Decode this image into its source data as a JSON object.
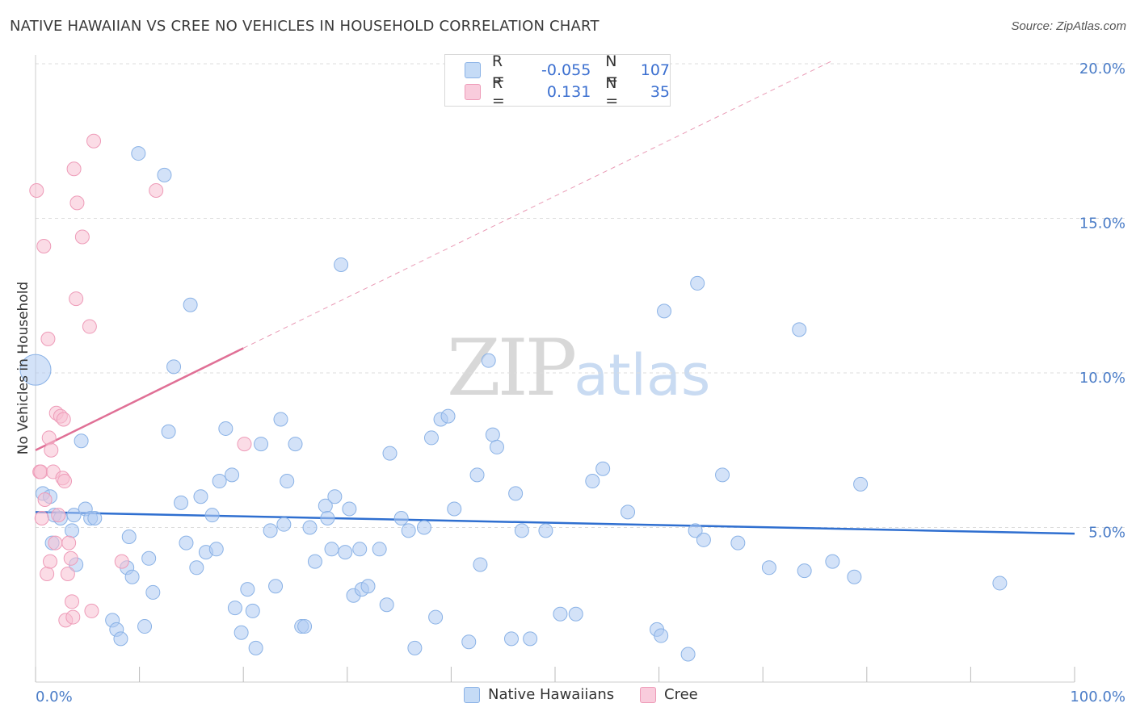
{
  "title": "NATIVE HAWAIIAN VS CREE NO VEHICLES IN HOUSEHOLD CORRELATION CHART",
  "source": "Source: ZipAtlas.com",
  "watermark": {
    "zip": "ZIP",
    "atlas": "atlas"
  },
  "colors": {
    "blue_fill": "#aecbf2",
    "blue_stroke": "#8ab2e6",
    "blue_line": "#2f6fd0",
    "pink_fill": "#f7c0d2",
    "pink_stroke": "#ee9bb8",
    "pink_line": "#e07096",
    "grid": "#dddddd",
    "axis_text": "#4a7cc7"
  },
  "legend": {
    "rows": [
      {
        "r_label": "R =",
        "r_value": "-0.055",
        "n_label": "N =",
        "n_value": "107"
      },
      {
        "r_label": "R =",
        "r_value": "0.131",
        "n_label": "N =",
        "n_value": "35"
      }
    ],
    "bottom": [
      "Native Hawaiians",
      "Cree"
    ]
  },
  "chart_data": {
    "type": "scatter",
    "xlabel": "",
    "ylabel": "No Vehicles in Household",
    "xlim": [
      0,
      100
    ],
    "ylim": [
      0,
      20
    ],
    "x_tick_labels": [
      "0.0%",
      "100.0%"
    ],
    "y_ticks": [
      5,
      10,
      15,
      20
    ],
    "y_tick_labels": [
      "5.0%",
      "10.0%",
      "15.0%",
      "20.0%"
    ],
    "grid": true,
    "series": [
      {
        "name": "Native Hawaiians",
        "r": -0.055,
        "n": 107,
        "trend": {
          "x": [
            0,
            100
          ],
          "y": [
            5.5,
            4.8
          ]
        },
        "points": [
          [
            0.7,
            6.1
          ],
          [
            1.4,
            6.0
          ],
          [
            1.6,
            4.5
          ],
          [
            1.8,
            5.4
          ],
          [
            2.4,
            5.3
          ],
          [
            3.5,
            4.9
          ],
          [
            3.7,
            5.4
          ],
          [
            3.9,
            3.8
          ],
          [
            4.4,
            7.8
          ],
          [
            4.8,
            5.6
          ],
          [
            5.3,
            5.3
          ],
          [
            5.7,
            5.3
          ],
          [
            7.4,
            2.0
          ],
          [
            7.8,
            1.7
          ],
          [
            8.2,
            1.4
          ],
          [
            8.8,
            3.7
          ],
          [
            9.0,
            4.7
          ],
          [
            9.3,
            3.4
          ],
          [
            9.9,
            17.1
          ],
          [
            10.5,
            1.8
          ],
          [
            10.9,
            4.0
          ],
          [
            11.3,
            2.9
          ],
          [
            12.4,
            16.4
          ],
          [
            12.8,
            8.1
          ],
          [
            13.3,
            10.2
          ],
          [
            14.0,
            5.8
          ],
          [
            14.5,
            4.5
          ],
          [
            14.9,
            12.2
          ],
          [
            15.5,
            3.7
          ],
          [
            15.9,
            6.0
          ],
          [
            16.4,
            4.2
          ],
          [
            17.0,
            5.4
          ],
          [
            17.4,
            4.3
          ],
          [
            17.7,
            6.5
          ],
          [
            18.3,
            8.2
          ],
          [
            18.9,
            6.7
          ],
          [
            19.2,
            2.4
          ],
          [
            19.8,
            1.6
          ],
          [
            20.4,
            3.0
          ],
          [
            20.9,
            2.3
          ],
          [
            21.2,
            1.1
          ],
          [
            21.7,
            7.7
          ],
          [
            22.6,
            4.9
          ],
          [
            23.1,
            3.1
          ],
          [
            23.6,
            8.5
          ],
          [
            23.9,
            5.1
          ],
          [
            24.2,
            6.5
          ],
          [
            25.0,
            7.7
          ],
          [
            25.6,
            1.8
          ],
          [
            25.9,
            1.8
          ],
          [
            26.4,
            5.0
          ],
          [
            26.9,
            3.9
          ],
          [
            27.9,
            5.7
          ],
          [
            28.1,
            5.3
          ],
          [
            28.5,
            4.3
          ],
          [
            28.8,
            6.0
          ],
          [
            29.4,
            13.5
          ],
          [
            29.8,
            4.2
          ],
          [
            30.2,
            5.6
          ],
          [
            30.6,
            2.8
          ],
          [
            31.2,
            4.3
          ],
          [
            31.4,
            3.0
          ],
          [
            32.0,
            3.1
          ],
          [
            33.1,
            4.3
          ],
          [
            33.8,
            2.5
          ],
          [
            34.1,
            7.4
          ],
          [
            35.2,
            5.3
          ],
          [
            35.9,
            4.9
          ],
          [
            36.5,
            1.1
          ],
          [
            37.4,
            5.0
          ],
          [
            38.1,
            7.9
          ],
          [
            38.5,
            2.1
          ],
          [
            39.0,
            8.5
          ],
          [
            39.7,
            8.6
          ],
          [
            40.3,
            5.6
          ],
          [
            41.7,
            1.3
          ],
          [
            42.5,
            6.7
          ],
          [
            42.8,
            3.8
          ],
          [
            43.6,
            10.4
          ],
          [
            44.0,
            8.0
          ],
          [
            44.4,
            7.6
          ],
          [
            45.8,
            1.4
          ],
          [
            46.2,
            6.1
          ],
          [
            46.8,
            4.9
          ],
          [
            47.6,
            1.4
          ],
          [
            49.1,
            4.9
          ],
          [
            50.5,
            2.2
          ],
          [
            52.0,
            2.2
          ],
          [
            53.6,
            6.5
          ],
          [
            54.6,
            6.9
          ],
          [
            57.0,
            5.5
          ],
          [
            59.8,
            1.7
          ],
          [
            60.2,
            1.5
          ],
          [
            60.5,
            12.0
          ],
          [
            62.8,
            0.9
          ],
          [
            63.5,
            4.9
          ],
          [
            63.7,
            12.9
          ],
          [
            64.3,
            4.6
          ],
          [
            66.1,
            6.7
          ],
          [
            67.6,
            4.5
          ],
          [
            70.6,
            3.7
          ],
          [
            73.5,
            11.4
          ],
          [
            74.0,
            3.6
          ],
          [
            76.7,
            3.9
          ],
          [
            78.8,
            3.4
          ],
          [
            79.4,
            6.4
          ],
          [
            92.8,
            3.2
          ]
        ]
      },
      {
        "name": "Cree",
        "r": 0.131,
        "n": 35,
        "trend": {
          "x": [
            0,
            20
          ],
          "y": [
            7.5,
            10.8
          ]
        },
        "trend_ext": {
          "x": [
            20,
            76.7
          ],
          "y": [
            10.8,
            20.1
          ]
        },
        "points": [
          [
            0.1,
            15.9
          ],
          [
            0.4,
            6.8
          ],
          [
            0.5,
            6.8
          ],
          [
            0.6,
            5.3
          ],
          [
            0.8,
            14.1
          ],
          [
            0.9,
            5.9
          ],
          [
            1.1,
            3.5
          ],
          [
            1.2,
            11.1
          ],
          [
            1.3,
            7.9
          ],
          [
            1.4,
            3.9
          ],
          [
            1.5,
            7.5
          ],
          [
            1.7,
            6.8
          ],
          [
            1.9,
            4.5
          ],
          [
            2.0,
            8.7
          ],
          [
            2.2,
            5.4
          ],
          [
            2.4,
            8.6
          ],
          [
            2.6,
            6.6
          ],
          [
            2.7,
            8.5
          ],
          [
            2.8,
            6.5
          ],
          [
            2.9,
            2.0
          ],
          [
            3.1,
            3.5
          ],
          [
            3.2,
            4.5
          ],
          [
            3.4,
            4.0
          ],
          [
            3.5,
            2.6
          ],
          [
            3.6,
            2.1
          ],
          [
            3.7,
            16.6
          ],
          [
            3.9,
            12.4
          ],
          [
            4.0,
            15.5
          ],
          [
            4.5,
            14.4
          ],
          [
            5.2,
            11.5
          ],
          [
            5.4,
            2.3
          ],
          [
            5.6,
            17.5
          ],
          [
            8.3,
            3.9
          ],
          [
            11.6,
            15.9
          ],
          [
            20.1,
            7.7
          ]
        ]
      }
    ]
  }
}
